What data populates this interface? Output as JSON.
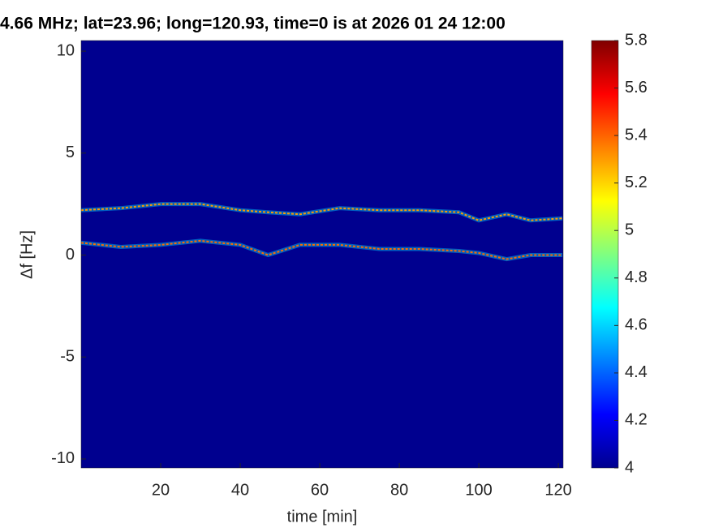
{
  "chart_data": {
    "type": "heatmap-traces",
    "title": "4.66 MHz;  lat=23.96; long=120.93, time=0 is at 2026 01 24 12:00",
    "xlabel": "time [min]",
    "ylabel": "Δf [Hz]",
    "x": [
      0,
      10,
      20,
      30,
      40,
      47,
      55,
      65,
      75,
      85,
      95,
      100,
      107,
      113,
      121
    ],
    "series": [
      {
        "color": "#ff9a00",
        "values": [
          2.2,
          2.3,
          2.5,
          2.5,
          2.2,
          2.1,
          2.0,
          2.3,
          2.2,
          2.2,
          2.1,
          1.7,
          2.0,
          1.7,
          1.8
        ]
      },
      {
        "color": "#ff6a00",
        "values": [
          0.6,
          0.4,
          0.5,
          0.7,
          0.5,
          0.0,
          0.5,
          0.5,
          0.3,
          0.3,
          0.2,
          0.1,
          -0.2,
          0.0,
          0.0
        ]
      }
    ],
    "xlim": [
      0,
      121.2
    ],
    "xticks": [
      20,
      40,
      60,
      80,
      100,
      120
    ],
    "ylim": [
      -10.44,
      10.52
    ],
    "yticks": [
      10,
      5,
      0,
      -5,
      -10
    ],
    "colormap": "jet",
    "clim": [
      4,
      5.8
    ],
    "cticks": [
      4,
      4.2,
      4.4,
      4.6,
      4.8,
      5,
      5.2,
      5.4,
      5.6,
      5.8
    ]
  }
}
